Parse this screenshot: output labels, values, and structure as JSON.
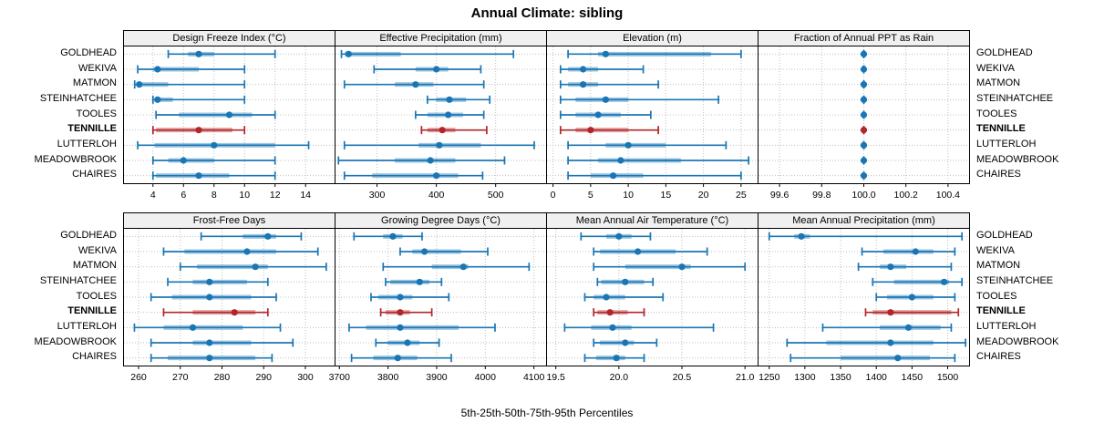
{
  "title": "Annual Climate: sibling",
  "caption": "5th-25th-50th-75th-95th Percentiles",
  "sites": [
    "GOLDHEAD",
    "WEKIVA",
    "MATMON",
    "STEINHATCHEE",
    "TOOLES",
    "TENNILLE",
    "LUTTERLOH",
    "MEADOWBROOK",
    "CHAIRES"
  ],
  "highlight_site": "TENNILLE",
  "colors": {
    "normal": "#1976B4",
    "highlight": "#B2262A",
    "strip_bg": "#F0F0F0",
    "grid": "#BFBFBF",
    "border": "#000000",
    "text": "#000000"
  },
  "chart_data": {
    "type": "dotplot-percentiles",
    "percentile_labels": [
      "5th",
      "25th",
      "50th",
      "75th",
      "95th"
    ],
    "legend_note": "thin whisker = 5th-95th, thick band = 25th-75th, dot = median (50th)",
    "grid": "dotted",
    "panels": [
      {
        "title": "Design Freeze Index (°C)",
        "row": 0,
        "xlim": [
          2.1,
          15.9
        ],
        "tick_values": [
          4,
          6,
          8,
          10,
          12,
          14
        ],
        "tick_labels": [
          "4",
          "6",
          "8",
          "10",
          "12",
          "14"
        ],
        "series": [
          {
            "site": "GOLDHEAD",
            "values": [
              5.0,
              6.3,
              7.0,
              8.0,
              12.0
            ]
          },
          {
            "site": "WEKIVA",
            "values": [
              3.0,
              4.0,
              4.3,
              7.0,
              10.0
            ]
          },
          {
            "site": "MATMON",
            "values": [
              2.8,
              3.0,
              3.1,
              5.0,
              10.0
            ]
          },
          {
            "site": "STEINHATCHEE",
            "values": [
              4.0,
              4.1,
              4.3,
              5.3,
              10.0
            ]
          },
          {
            "site": "TOOLES",
            "values": [
              4.2,
              5.7,
              9.0,
              10.5,
              12.0
            ]
          },
          {
            "site": "TENNILLE",
            "values": [
              4.0,
              4.2,
              7.0,
              9.2,
              10.0
            ]
          },
          {
            "site": "LUTTERLOH",
            "values": [
              3.0,
              4.1,
              8.0,
              12.0,
              14.2
            ]
          },
          {
            "site": "MEADOWBROOK",
            "values": [
              4.0,
              5.0,
              6.0,
              8.0,
              12.0
            ]
          },
          {
            "site": "CHAIRES",
            "values": [
              4.0,
              4.2,
              7.0,
              9.0,
              12.0
            ]
          }
        ]
      },
      {
        "title": "Effective Precipitation (mm)",
        "row": 0,
        "xlim": [
          230,
          585
        ],
        "tick_values": [
          300,
          400,
          500
        ],
        "tick_labels": [
          "300",
          "400",
          "500"
        ],
        "series": [
          {
            "site": "GOLDHEAD",
            "values": [
              240,
              246,
              252,
              340,
              530
            ]
          },
          {
            "site": "WEKIVA",
            "values": [
              295,
              365,
              400,
              420,
              475
            ]
          },
          {
            "site": "MATMON",
            "values": [
              245,
              330,
              365,
              395,
              480
            ]
          },
          {
            "site": "STEINHATCHEE",
            "values": [
              385,
              400,
              422,
              450,
              490
            ]
          },
          {
            "site": "TOOLES",
            "values": [
              365,
              385,
              420,
              445,
              480
            ]
          },
          {
            "site": "TENNILLE",
            "values": [
              375,
              385,
              410,
              432,
              485
            ]
          },
          {
            "site": "LUTTERLOH",
            "values": [
              245,
              370,
              405,
              475,
              565
            ]
          },
          {
            "site": "MEADOWBROOK",
            "values": [
              235,
              330,
              390,
              432,
              515
            ]
          },
          {
            "site": "CHAIRES",
            "values": [
              245,
              292,
              400,
              437,
              478
            ]
          }
        ]
      },
      {
        "title": "Elevation (m)",
        "row": 0,
        "xlim": [
          -0.8,
          27.2
        ],
        "tick_values": [
          0,
          5,
          10,
          15,
          20,
          25
        ],
        "tick_labels": [
          "0",
          "5",
          "10",
          "15",
          "20",
          "25"
        ],
        "series": [
          {
            "site": "GOLDHEAD",
            "values": [
              2,
              6,
              7,
              21,
              25
            ]
          },
          {
            "site": "WEKIVA",
            "values": [
              1,
              2,
              4,
              6,
              12
            ]
          },
          {
            "site": "MATMON",
            "values": [
              1,
              2,
              4,
              6,
              14
            ]
          },
          {
            "site": "STEINHATCHEE",
            "values": [
              1,
              3,
              7,
              10,
              22
            ]
          },
          {
            "site": "TOOLES",
            "values": [
              1,
              3,
              6,
              9,
              13
            ]
          },
          {
            "site": "TENNILLE",
            "values": [
              1,
              3,
              5,
              10,
              14
            ]
          },
          {
            "site": "LUTTERLOH",
            "values": [
              2,
              7,
              10,
              15,
              23
            ]
          },
          {
            "site": "MEADOWBROOK",
            "values": [
              2,
              6,
              9,
              17,
              26
            ]
          },
          {
            "site": "CHAIRES",
            "values": [
              2,
              5,
              8,
              12,
              25
            ]
          }
        ]
      },
      {
        "title": "Fraction of Annual PPT as Rain",
        "row": 0,
        "xlim": [
          99.5,
          100.5
        ],
        "tick_values": [
          99.6,
          99.8,
          100.0,
          100.2,
          100.4
        ],
        "tick_labels": [
          "99.6",
          "99.8",
          "100.0",
          "100.2",
          "100.4"
        ],
        "series": [
          {
            "site": "GOLDHEAD",
            "values": [
              100,
              100,
              100,
              100,
              100
            ]
          },
          {
            "site": "WEKIVA",
            "values": [
              100,
              100,
              100,
              100,
              100
            ]
          },
          {
            "site": "MATMON",
            "values": [
              100,
              100,
              100,
              100,
              100
            ]
          },
          {
            "site": "STEINHATCHEE",
            "values": [
              100,
              100,
              100,
              100,
              100
            ]
          },
          {
            "site": "TOOLES",
            "values": [
              100,
              100,
              100,
              100,
              100
            ]
          },
          {
            "site": "TENNILLE",
            "values": [
              100,
              100,
              100,
              100,
              100
            ]
          },
          {
            "site": "LUTTERLOH",
            "values": [
              100,
              100,
              100,
              100,
              100
            ]
          },
          {
            "site": "MEADOWBROOK",
            "values": [
              100,
              100,
              100,
              100,
              100
            ]
          },
          {
            "site": "CHAIRES",
            "values": [
              100,
              100,
              100,
              100,
              100
            ]
          }
        ]
      },
      {
        "title": "Frost-Free Days",
        "row": 1,
        "xlim": [
          256.5,
          307
        ],
        "tick_values": [
          260,
          270,
          280,
          290,
          300
        ],
        "tick_labels": [
          "260",
          "270",
          "280",
          "290",
          "300"
        ],
        "series": [
          {
            "site": "GOLDHEAD",
            "values": [
              275,
              285,
              291,
              293,
              299
            ]
          },
          {
            "site": "WEKIVA",
            "values": [
              266,
              271,
              286,
              293,
              303
            ]
          },
          {
            "site": "MATMON",
            "values": [
              270,
              274,
              288,
              291,
              305
            ]
          },
          {
            "site": "STEINHATCHEE",
            "values": [
              267,
              273,
              277,
              286,
              291
            ]
          },
          {
            "site": "TOOLES",
            "values": [
              263,
              268,
              277,
              287,
              293
            ]
          },
          {
            "site": "TENNILLE",
            "values": [
              266,
              273,
              283,
              288,
              291
            ]
          },
          {
            "site": "LUTTERLOH",
            "values": [
              259,
              266,
              273,
              285,
              294
            ]
          },
          {
            "site": "MEADOWBROOK",
            "values": [
              263,
              273,
              277,
              287,
              297
            ]
          },
          {
            "site": "CHAIRES",
            "values": [
              263,
              267,
              277,
              288,
              292
            ]
          }
        ]
      },
      {
        "title": "Growing Degree Days (°C)",
        "row": 1,
        "xlim": [
          3692,
          4125
        ],
        "tick_values": [
          3700,
          3800,
          3900,
          4000,
          4100
        ],
        "tick_labels": [
          "3700",
          "3800",
          "3900",
          "4000",
          "4100"
        ],
        "series": [
          {
            "site": "GOLDHEAD",
            "values": [
              3730,
              3790,
              3810,
              3830,
              3870
            ]
          },
          {
            "site": "WEKIVA",
            "values": [
              3825,
              3850,
              3875,
              3950,
              4005
            ]
          },
          {
            "site": "MATMON",
            "values": [
              3790,
              3890,
              3955,
              3965,
              4090
            ]
          },
          {
            "site": "STEINHATCHEE",
            "values": [
              3795,
              3805,
              3865,
              3885,
              3910
            ]
          },
          {
            "site": "TOOLES",
            "values": [
              3765,
              3780,
              3825,
              3850,
              3925
            ]
          },
          {
            "site": "TENNILLE",
            "values": [
              3785,
              3795,
              3825,
              3845,
              3890
            ]
          },
          {
            "site": "LUTTERLOH",
            "values": [
              3720,
              3755,
              3825,
              3945,
              4020
            ]
          },
          {
            "site": "MEADOWBROOK",
            "values": [
              3775,
              3800,
              3840,
              3865,
              3905
            ]
          },
          {
            "site": "CHAIRES",
            "values": [
              3725,
              3770,
              3820,
              3860,
              3930
            ]
          }
        ]
      },
      {
        "title": "Mean Annual Air Temperature (°C)",
        "row": 1,
        "xlim": [
          19.43,
          21.1
        ],
        "tick_values": [
          19.5,
          20.0,
          20.5,
          21.0
        ],
        "tick_labels": [
          "19.5",
          "20.0",
          "20.5",
          "21.0"
        ],
        "series": [
          {
            "site": "GOLDHEAD",
            "values": [
              19.7,
              19.9,
              20.0,
              20.1,
              20.25
            ]
          },
          {
            "site": "WEKIVA",
            "values": [
              19.8,
              19.85,
              20.15,
              20.45,
              20.7
            ]
          },
          {
            "site": "MATMON",
            "values": [
              19.8,
              20.05,
              20.5,
              20.57,
              21.0
            ]
          },
          {
            "site": "STEINHATCHEE",
            "values": [
              19.83,
              19.86,
              20.05,
              20.2,
              20.27
            ]
          },
          {
            "site": "TOOLES",
            "values": [
              19.73,
              19.8,
              19.9,
              20.05,
              20.35
            ]
          },
          {
            "site": "TENNILLE",
            "values": [
              19.8,
              19.83,
              19.93,
              20.07,
              20.2
            ]
          },
          {
            "site": "LUTTERLOH",
            "values": [
              19.57,
              19.78,
              19.95,
              20.1,
              20.75
            ]
          },
          {
            "site": "MEADOWBROOK",
            "values": [
              19.8,
              19.85,
              20.05,
              20.12,
              20.3
            ]
          },
          {
            "site": "CHAIRES",
            "values": [
              19.73,
              19.82,
              19.98,
              20.05,
              20.2
            ]
          }
        ]
      },
      {
        "title": "Mean Annual Precipitation (mm)",
        "row": 1,
        "xlim": [
          1235,
          1530
        ],
        "tick_values": [
          1250,
          1300,
          1350,
          1400,
          1450,
          1500
        ],
        "tick_labels": [
          "1250",
          "1300",
          "1350",
          "1400",
          "1450",
          "1500"
        ],
        "series": [
          {
            "site": "GOLDHEAD",
            "values": [
              1250,
              1285,
              1295,
              1307,
              1520
            ]
          },
          {
            "site": "WEKIVA",
            "values": [
              1380,
              1410,
              1455,
              1480,
              1510
            ]
          },
          {
            "site": "MATMON",
            "values": [
              1375,
              1405,
              1420,
              1442,
              1505
            ]
          },
          {
            "site": "STEINHATCHEE",
            "values": [
              1395,
              1425,
              1495,
              1502,
              1520
            ]
          },
          {
            "site": "TOOLES",
            "values": [
              1400,
              1415,
              1450,
              1480,
              1510
            ]
          },
          {
            "site": "TENNILLE",
            "values": [
              1385,
              1395,
              1420,
              1505,
              1515
            ]
          },
          {
            "site": "LUTTERLOH",
            "values": [
              1325,
              1405,
              1445,
              1490,
              1505
            ]
          },
          {
            "site": "MEADOWBROOK",
            "values": [
              1275,
              1330,
              1420,
              1480,
              1525
            ]
          },
          {
            "site": "CHAIRES",
            "values": [
              1280,
              1350,
              1430,
              1475,
              1510
            ]
          }
        ]
      }
    ]
  }
}
